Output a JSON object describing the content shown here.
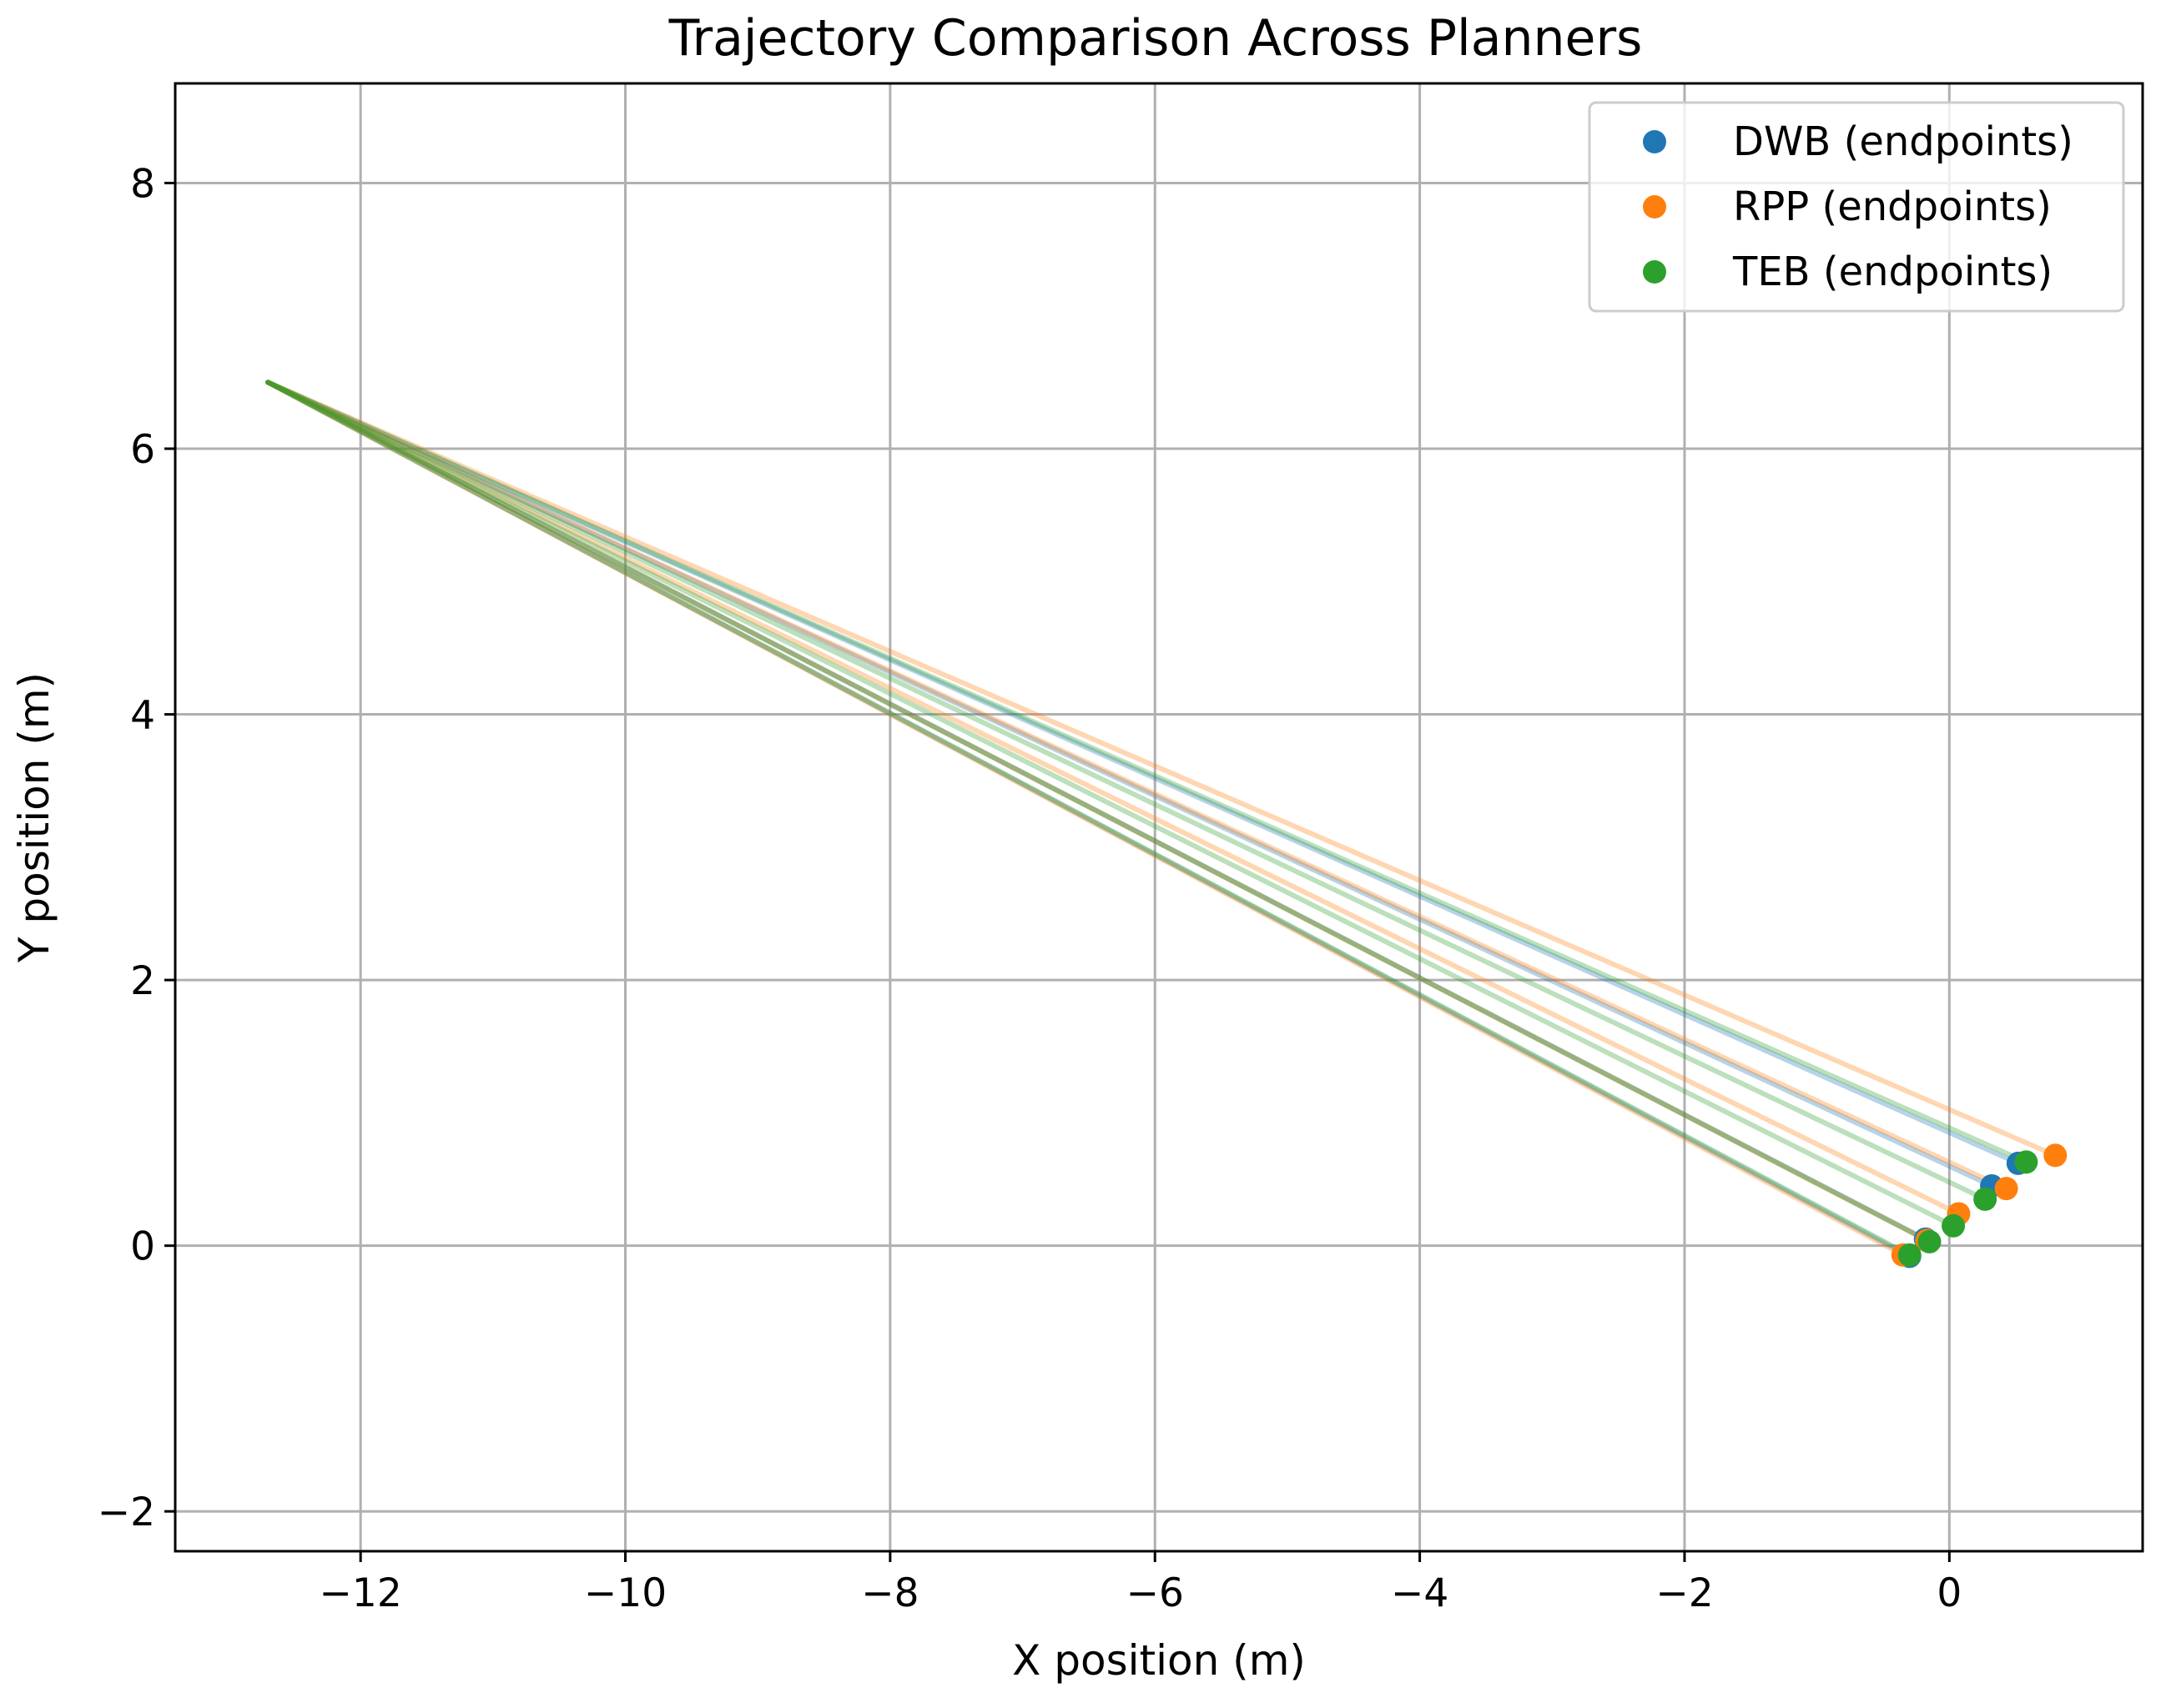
{
  "chart_data": {
    "type": "line",
    "title": "Trajectory Comparison Across Planners",
    "xlabel": "X position (m)",
    "ylabel": "Y position (m)",
    "xlim": [
      -13.4,
      1.46
    ],
    "ylim": [
      -2.3,
      8.75
    ],
    "xticks": [
      -12,
      -10,
      -8,
      -6,
      -4,
      -2,
      0
    ],
    "yticks": [
      -2,
      0,
      2,
      4,
      6,
      8
    ],
    "xtick_labels": [
      "−12",
      "−10",
      "−8",
      "−6",
      "−4",
      "−2",
      "0"
    ],
    "ytick_labels": [
      "−2",
      "0",
      "2",
      "4",
      "6",
      "8"
    ],
    "grid": true,
    "legend_position": "top-right",
    "start_point": [
      -12.7,
      6.5
    ],
    "series": [
      {
        "name": "DWB (endpoints)",
        "color": "#1f77b4",
        "endpoints": [
          [
            0.52,
            0.62
          ],
          [
            0.32,
            0.45
          ],
          [
            -0.18,
            0.05
          ],
          [
            -0.3,
            -0.08
          ]
        ]
      },
      {
        "name": "RPP (endpoints)",
        "color": "#ff7f0e",
        "endpoints": [
          [
            0.8,
            0.68
          ],
          [
            0.43,
            0.43
          ],
          [
            0.07,
            0.24
          ],
          [
            -0.17,
            0.04
          ],
          [
            -0.35,
            -0.07
          ]
        ]
      },
      {
        "name": "TEB (endpoints)",
        "color": "#2ca02c",
        "endpoints": [
          [
            0.58,
            0.63
          ],
          [
            0.27,
            0.35
          ],
          [
            0.03,
            0.15
          ],
          [
            -0.15,
            0.03
          ],
          [
            -0.3,
            -0.07
          ]
        ]
      }
    ]
  }
}
